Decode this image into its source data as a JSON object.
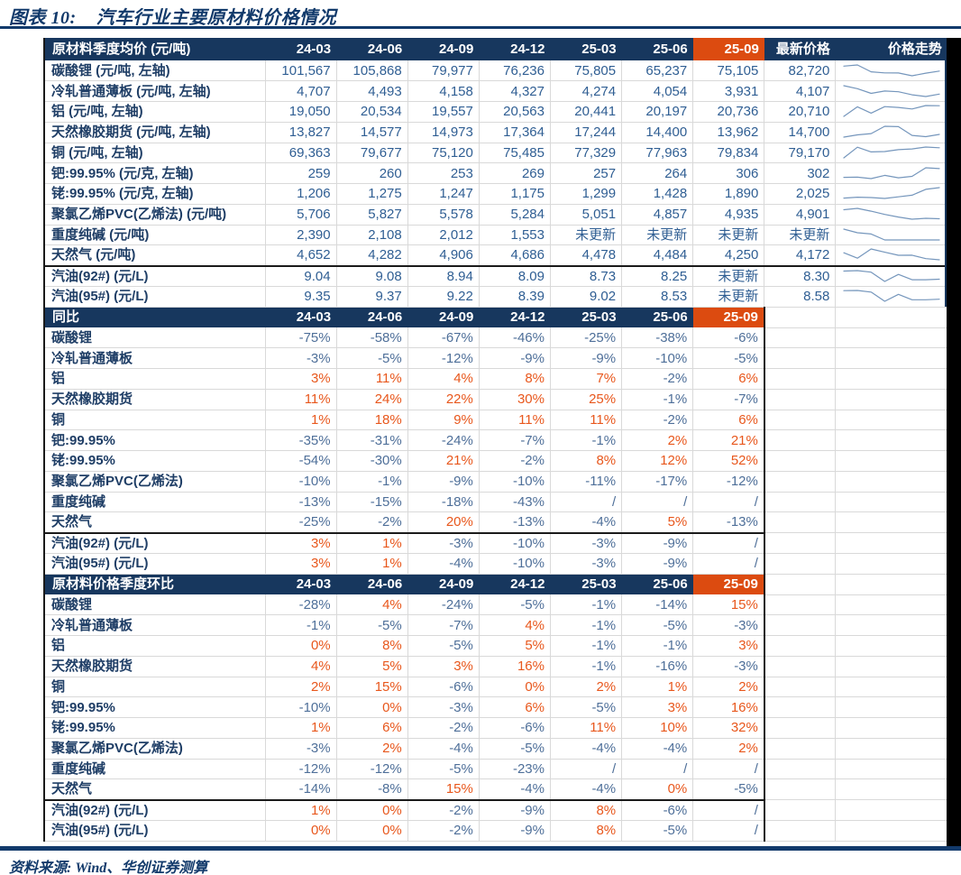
{
  "title": {
    "prefix": "图表 10:",
    "text": "汽车行业主要原材料价格情况"
  },
  "footer": {
    "source": "资料来源: Wind、华创证券测算"
  },
  "colors": {
    "header_bg": "#17375E",
    "highlight_bg": "#DC4B10",
    "number_text": "#2F5E93",
    "positive_text": "#E8571C",
    "negative_text": "#4E6F99",
    "label_text": "#1F3E66",
    "sparkline": "#7596BC",
    "title_text": "#123A6B"
  },
  "chart_data": {
    "type": "table",
    "quarters": [
      "24-03",
      "24-06",
      "24-09",
      "24-12",
      "25-03",
      "25-06",
      "25-09"
    ],
    "highlighted_quarter": "25-09",
    "sections": [
      {
        "header_label": "原材料季度均价 (元/吨)",
        "extra_headers": [
          "最新价格",
          "价格走势"
        ],
        "kind": "price",
        "rows": [
          {
            "label": "碳酸锂 (元/吨, 左轴)",
            "values": [
              "101,567",
              "105,868",
              "79,977",
              "76,236",
              "75,805",
              "65,237",
              "75,105"
            ],
            "latest": "82,720"
          },
          {
            "label": "冷轧普通薄板 (元/吨, 左轴)",
            "values": [
              "4,707",
              "4,493",
              "4,158",
              "4,327",
              "4,274",
              "4,054",
              "3,931"
            ],
            "latest": "4,107"
          },
          {
            "label": "铝 (元/吨, 左轴)",
            "values": [
              "19,050",
              "20,534",
              "19,557",
              "20,563",
              "20,441",
              "20,197",
              "20,736"
            ],
            "latest": "20,710"
          },
          {
            "label": "天然橡胶期货 (元/吨, 左轴)",
            "values": [
              "13,827",
              "14,577",
              "14,973",
              "17,364",
              "17,244",
              "14,400",
              "13,962"
            ],
            "latest": "14,700"
          },
          {
            "label": "铜 (元/吨, 左轴)",
            "values": [
              "69,363",
              "79,677",
              "75,120",
              "75,485",
              "77,329",
              "77,963",
              "79,834"
            ],
            "latest": "79,170"
          },
          {
            "label": "钯:99.95% (元/克, 左轴)",
            "values": [
              "259",
              "260",
              "253",
              "269",
              "257",
              "264",
              "306"
            ],
            "latest": "302"
          },
          {
            "label": "铑:99.95% (元/克, 左轴)",
            "values": [
              "1,206",
              "1,275",
              "1,247",
              "1,175",
              "1,299",
              "1,428",
              "1,890"
            ],
            "latest": "2,025"
          },
          {
            "label": "聚氯乙烯PVC(乙烯法) (元/吨)",
            "values": [
              "5,706",
              "5,827",
              "5,578",
              "5,284",
              "5,051",
              "4,857",
              "4,935"
            ],
            "latest": "4,901"
          },
          {
            "label": "重度纯碱 (元/吨)",
            "values": [
              "2,390",
              "2,108",
              "2,012",
              "1,553",
              "未更新",
              "未更新",
              "未更新"
            ],
            "latest": "未更新"
          },
          {
            "label": "天然气 (元/吨)",
            "values": [
              "4,652",
              "4,282",
              "4,906",
              "4,686",
              "4,478",
              "4,484",
              "4,250"
            ],
            "latest": "4,172"
          },
          {
            "label": "汽油(92#) (元/L)",
            "values": [
              "9.04",
              "9.08",
              "8.94",
              "8.09",
              "8.73",
              "8.25",
              "未更新"
            ],
            "latest": "8.30"
          },
          {
            "label": "汽油(95#) (元/L)",
            "values": [
              "9.35",
              "9.37",
              "9.22",
              "8.39",
              "9.02",
              "8.53",
              "未更新"
            ],
            "latest": "8.58"
          }
        ]
      },
      {
        "header_label": "同比",
        "kind": "pct",
        "rows": [
          {
            "label": "碳酸锂",
            "values": [
              "-75%",
              "-58%",
              "-67%",
              "-46%",
              "-25%",
              "-38%",
              "-6%"
            ]
          },
          {
            "label": "冷轧普通薄板",
            "values": [
              "-3%",
              "-5%",
              "-12%",
              "-9%",
              "-9%",
              "-10%",
              "-5%"
            ]
          },
          {
            "label": "铝",
            "values": [
              "3%",
              "11%",
              "4%",
              "8%",
              "7%",
              "-2%",
              "6%"
            ]
          },
          {
            "label": "天然橡胶期货",
            "values": [
              "11%",
              "24%",
              "22%",
              "30%",
              "25%",
              "-1%",
              "-7%"
            ]
          },
          {
            "label": "铜",
            "values": [
              "1%",
              "18%",
              "9%",
              "11%",
              "11%",
              "-2%",
              "6%"
            ]
          },
          {
            "label": "钯:99.95%",
            "values": [
              "-35%",
              "-31%",
              "-24%",
              "-7%",
              "-1%",
              "2%",
              "21%"
            ]
          },
          {
            "label": "铑:99.95%",
            "values": [
              "-54%",
              "-30%",
              "21%",
              "-2%",
              "8%",
              "12%",
              "52%"
            ]
          },
          {
            "label": "聚氯乙烯PVC(乙烯法)",
            "values": [
              "-10%",
              "-1%",
              "-9%",
              "-10%",
              "-11%",
              "-17%",
              "-12%"
            ]
          },
          {
            "label": "重度纯碱",
            "values": [
              "-13%",
              "-15%",
              "-18%",
              "-43%",
              "/",
              "/",
              "/"
            ]
          },
          {
            "label": "天然气",
            "values": [
              "-25%",
              "-2%",
              "20%",
              "-13%",
              "-4%",
              "5%",
              "-13%"
            ]
          },
          {
            "label": "汽油(92#) (元/L)",
            "values": [
              "3%",
              "1%",
              "-3%",
              "-10%",
              "-3%",
              "-9%",
              "/"
            ]
          },
          {
            "label": "汽油(95#) (元/L)",
            "values": [
              "3%",
              "1%",
              "-4%",
              "-10%",
              "-3%",
              "-9%",
              "/"
            ]
          }
        ]
      },
      {
        "header_label": "原材料价格季度环比",
        "kind": "pct",
        "rows": [
          {
            "label": "碳酸锂",
            "values": [
              "-28%",
              "4%",
              "-24%",
              "-5%",
              "-1%",
              "-14%",
              "15%"
            ]
          },
          {
            "label": "冷轧普通薄板",
            "values": [
              "-1%",
              "-5%",
              "-7%",
              "4%",
              "-1%",
              "-5%",
              "-3%"
            ]
          },
          {
            "label": "铝",
            "values": [
              "0%",
              "8%",
              "-5%",
              "5%",
              "-1%",
              "-1%",
              "3%"
            ]
          },
          {
            "label": "天然橡胶期货",
            "values": [
              "4%",
              "5%",
              "3%",
              "16%",
              "-1%",
              "-16%",
              "-3%"
            ]
          },
          {
            "label": "铜",
            "values": [
              "2%",
              "15%",
              "-6%",
              "0%",
              "2%",
              "1%",
              "2%"
            ]
          },
          {
            "label": "钯:99.95%",
            "values": [
              "-10%",
              "0%",
              "-3%",
              "6%",
              "-5%",
              "3%",
              "16%"
            ]
          },
          {
            "label": "铑:99.95%",
            "values": [
              "1%",
              "6%",
              "-2%",
              "-6%",
              "11%",
              "10%",
              "32%"
            ]
          },
          {
            "label": "聚氯乙烯PVC(乙烯法)",
            "values": [
              "-3%",
              "2%",
              "-4%",
              "-5%",
              "-4%",
              "-4%",
              "2%"
            ]
          },
          {
            "label": "重度纯碱",
            "values": [
              "-12%",
              "-12%",
              "-5%",
              "-23%",
              "/",
              "/",
              "/"
            ]
          },
          {
            "label": "天然气",
            "values": [
              "-14%",
              "-8%",
              "15%",
              "-4%",
              "-4%",
              "0%",
              "-5%"
            ]
          },
          {
            "label": "汽油(92#) (元/L)",
            "values": [
              "1%",
              "0%",
              "-2%",
              "-9%",
              "8%",
              "-6%",
              "/"
            ]
          },
          {
            "label": "汽油(95#) (元/L)",
            "values": [
              "0%",
              "0%",
              "-2%",
              "-9%",
              "8%",
              "-5%",
              "/"
            ]
          }
        ]
      }
    ]
  }
}
